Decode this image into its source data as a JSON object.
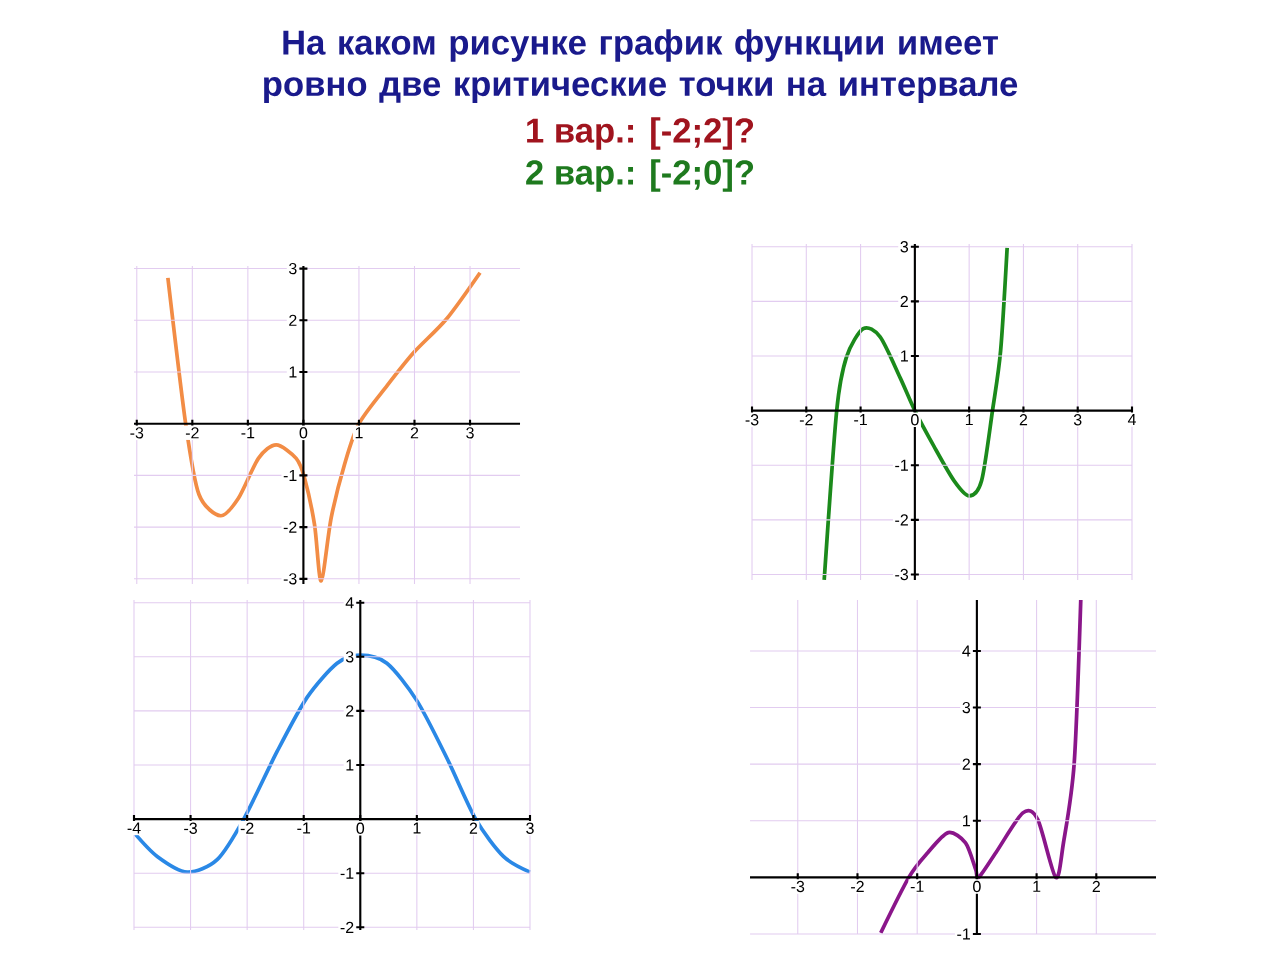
{
  "chart_data": [
    {
      "type": "line",
      "title": "На каком рисунке график функции имеет ровно две критические точки на интервале",
      "annotations": [
        "1 вар.: [-2;2]?",
        "2 вар.: [-2;0]?"
      ],
      "color": "#f28c45",
      "grid": true,
      "x": [
        -2.44,
        -2.12,
        -1.88,
        -1.49,
        -1.17,
        -0.81,
        -0.49,
        -0.13,
        0.02,
        0.2,
        0.32,
        0.5,
        0.74,
        1,
        1.51,
        1.99,
        2.58,
        3.18
      ],
      "values": [
        2.82,
        0,
        -1.37,
        -1.78,
        -1.44,
        -0.67,
        -0.41,
        -0.67,
        -1.05,
        -1.95,
        -3.04,
        -1.82,
        -0.79,
        0,
        0.74,
        1.38,
        2.03,
        2.92
      ],
      "xlim": [
        -3.05,
        3.9
      ],
      "ylim": [
        -3.1,
        3.05
      ],
      "xticks": [
        -3,
        -2,
        -1,
        0,
        1,
        2,
        3
      ],
      "yticks": [
        -3,
        -2,
        -1,
        1,
        2,
        3
      ]
    },
    {
      "type": "line",
      "color": "#1b8a1b",
      "grid": true,
      "x": [
        -1.67,
        -1.44,
        -1.26,
        -0.95,
        -0.64,
        -0.27,
        0,
        0.35,
        0.72,
        1,
        1.23,
        1.43,
        1.58,
        1.7
      ],
      "values": [
        -3.1,
        0,
        0.98,
        1.5,
        1.35,
        0.6,
        0,
        -0.65,
        -1.28,
        -1.56,
        -1.28,
        0,
        1.1,
        2.98
      ],
      "xlim": [
        -3,
        4
      ],
      "ylim": [
        -3.1,
        3.05
      ],
      "xticks": [
        -3,
        -2,
        -1,
        0,
        1,
        2,
        3,
        4
      ],
      "yticks": [
        -3,
        -2,
        -1,
        1,
        2,
        3
      ]
    },
    {
      "type": "line",
      "color": "#2a88e6",
      "grid": true,
      "x": [
        -4,
        -3.59,
        -3.06,
        -2.53,
        -2.06,
        -1.47,
        -0.94,
        -0.41,
        0,
        0.47,
        1,
        1.53,
        2.04,
        2.53,
        3
      ],
      "values": [
        -0.25,
        -0.69,
        -0.98,
        -0.75,
        0,
        1.25,
        2.25,
        2.88,
        3.03,
        2.88,
        2.19,
        1.13,
        0,
        -0.69,
        -0.98
      ],
      "xlim": [
        -4,
        3
      ],
      "ylim": [
        -2.05,
        4.05
      ],
      "xticks": [
        -4,
        -3,
        -2,
        -1,
        0,
        1,
        2,
        3
      ],
      "yticks": [
        -2,
        -1,
        1,
        2,
        3,
        4
      ]
    },
    {
      "type": "line",
      "color": "#8a168a",
      "grid": true,
      "x": [
        -1.61,
        -1.14,
        -0.82,
        -0.48,
        -0.19,
        -0.02,
        0.03,
        0.32,
        0.77,
        1.02,
        1.32,
        1.45,
        1.63,
        1.74
      ],
      "values": [
        -0.98,
        0,
        0.44,
        0.79,
        0.61,
        0.14,
        0,
        0.44,
        1.14,
        1.02,
        0,
        0.61,
        2.02,
        4.9
      ],
      "xlim": [
        -3.8,
        3
      ],
      "ylim": [
        -1,
        4.9
      ],
      "xticks": [
        -3,
        -2,
        -1,
        0,
        1,
        2
      ],
      "yticks": [
        -1,
        1,
        2,
        3,
        4
      ]
    }
  ]
}
